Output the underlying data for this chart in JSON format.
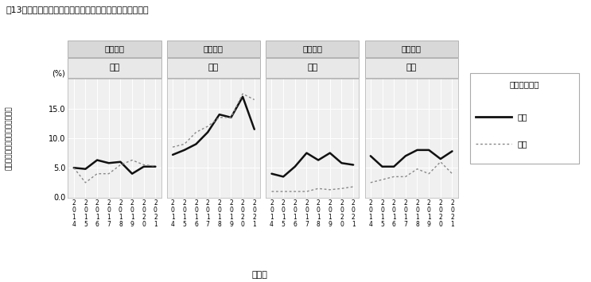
{
  "title": "図13　性別・世代別・配偶者の有無別にみた介護者の割合",
  "panels": [
    {
      "gender": "女性",
      "generation": "若年世代",
      "nashi": [
        5.0,
        4.8,
        6.3,
        5.8,
        6.0,
        4.0,
        5.2,
        5.2
      ],
      "ari": [
        5.0,
        2.5,
        4.0,
        4.0,
        5.5,
        6.3,
        5.5,
        5.3
      ]
    },
    {
      "gender": "女性",
      "generation": "壮年世代",
      "nashi": [
        7.2,
        8.0,
        9.0,
        11.0,
        14.0,
        13.5,
        17.0,
        11.5
      ],
      "ari": [
        8.5,
        9.0,
        11.0,
        12.0,
        13.5,
        13.5,
        17.5,
        16.5
      ]
    },
    {
      "gender": "男性",
      "generation": "若年世代",
      "nashi": [
        4.0,
        3.5,
        5.2,
        7.5,
        6.3,
        7.5,
        5.8,
        5.5
      ],
      "ari": [
        1.0,
        1.0,
        1.0,
        1.0,
        1.5,
        1.3,
        1.5,
        1.8
      ]
    },
    {
      "gender": "男性",
      "generation": "壮年世代",
      "nashi": [
        7.0,
        5.2,
        5.2,
        7.0,
        8.0,
        8.0,
        6.5,
        7.8
      ],
      "ari": [
        2.5,
        3.0,
        3.5,
        3.5,
        4.8,
        4.0,
        6.0,
        4.0
      ]
    }
  ],
  "years": [
    "2014",
    "2015",
    "2016",
    "2017",
    "2018",
    "2019",
    "2020",
    "2021"
  ],
  "ylim": [
    0.0,
    20.0
  ],
  "yticks": [
    0.0,
    5.0,
    10.0,
    15.0
  ],
  "ylabel": "介護をしていると答えた人の割合",
  "xlabel": "調査年",
  "legend_title": "配偶者の有無",
  "legend_nashi": "なし",
  "legend_ari": "あり",
  "color_nashi": "#111111",
  "color_ari": "#888888",
  "bg_panel": "#f0f0f0",
  "header_gender_bg": "#e8e8e8",
  "header_gen_bg": "#d8d8d8"
}
